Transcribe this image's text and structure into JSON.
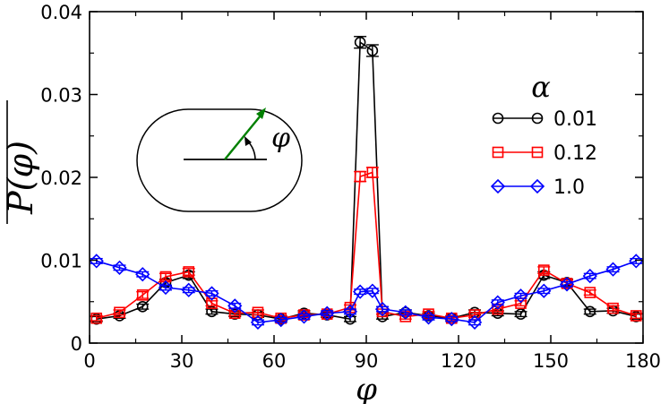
{
  "chart_data": {
    "type": "line",
    "title": "",
    "xlabel": "φ",
    "ylabel": "P(φ)",
    "xlim": [
      0,
      180
    ],
    "ylim": [
      0,
      0.04
    ],
    "x_ticks": [
      0,
      30,
      60,
      90,
      120,
      150,
      180
    ],
    "x_tick_labels": [
      "0",
      "30",
      "60",
      "90",
      "120",
      "150",
      "180"
    ],
    "y_ticks": [
      0,
      0.01,
      0.02,
      0.03,
      0.04
    ],
    "y_tick_labels": [
      "0",
      "0.01",
      "0.02",
      "0.03",
      "0.04"
    ],
    "legend_title": "α",
    "legend_position": "top-right",
    "x": [
      2.25,
      9.75,
      17.25,
      24.75,
      32.25,
      39.75,
      47.25,
      54.75,
      62.25,
      69.75,
      77.25,
      84.75,
      88,
      92,
      95.25,
      102.75,
      110.25,
      117.75,
      125.25,
      132.75,
      140.25,
      147.75,
      155.25,
      162.75,
      170.25,
      177.75
    ],
    "series": [
      {
        "name": "0.01",
        "color": "#000000",
        "marker": "circle",
        "values": [
          0.0029,
          0.0033,
          0.0044,
          0.0073,
          0.0082,
          0.0038,
          0.0035,
          0.0034,
          0.0029,
          0.0036,
          0.0034,
          0.0029,
          0.0363,
          0.0353,
          0.0032,
          0.0037,
          0.0033,
          0.003,
          0.0037,
          0.0036,
          0.0035,
          0.0082,
          0.0073,
          0.0038,
          0.0039,
          0.0032
        ],
        "errors": [
          0.0003,
          0.0003,
          0.0003,
          0.0004,
          0.0004,
          0.0003,
          0.0003,
          0.0003,
          0.0003,
          0.0003,
          0.0003,
          0.0003,
          0.0007,
          0.0007,
          0.0003,
          0.0003,
          0.0003,
          0.0003,
          0.0003,
          0.0003,
          0.0003,
          0.0004,
          0.0004,
          0.0003,
          0.0003,
          0.0003
        ]
      },
      {
        "name": "0.12",
        "color": "#ff0000",
        "marker": "square",
        "values": [
          0.003,
          0.0037,
          0.0058,
          0.008,
          0.0086,
          0.0048,
          0.0036,
          0.0037,
          0.003,
          0.0034,
          0.0035,
          0.0043,
          0.0201,
          0.0206,
          0.0038,
          0.0032,
          0.0035,
          0.003,
          0.0034,
          0.0041,
          0.0048,
          0.0088,
          0.0072,
          0.0061,
          0.0042,
          0.0033
        ],
        "errors": [
          0.0003,
          0.0003,
          0.0004,
          0.0004,
          0.0004,
          0.0003,
          0.0003,
          0.0003,
          0.0003,
          0.0003,
          0.0003,
          0.0003,
          0.0006,
          0.0006,
          0.0003,
          0.0003,
          0.0003,
          0.0003,
          0.0003,
          0.0003,
          0.0003,
          0.0004,
          0.0004,
          0.0003,
          0.0003,
          0.0003
        ]
      },
      {
        "name": "1.0",
        "color": "#0000ff",
        "marker": "diamond",
        "values": [
          0.0099,
          0.0091,
          0.0083,
          0.0067,
          0.0064,
          0.006,
          0.0045,
          0.0025,
          0.0028,
          0.0032,
          0.0036,
          0.0038,
          0.0062,
          0.0063,
          0.0041,
          0.0037,
          0.0031,
          0.0029,
          0.0025,
          0.0049,
          0.0057,
          0.0063,
          0.0071,
          0.0081,
          0.0089,
          0.0099
        ],
        "errors": [
          0.0003,
          0.0003,
          0.0003,
          0.0003,
          0.0003,
          0.0003,
          0.0003,
          0.0003,
          0.0003,
          0.0003,
          0.0003,
          0.0003,
          0.0003,
          0.0003,
          0.0003,
          0.0003,
          0.0003,
          0.0003,
          0.0003,
          0.0003,
          0.0003,
          0.0003,
          0.0003,
          0.0003,
          0.0003,
          0.0003
        ]
      }
    ],
    "inset": {
      "description_shape": "stadium",
      "angle_label": "φ",
      "arrow_color": "#008000"
    }
  }
}
